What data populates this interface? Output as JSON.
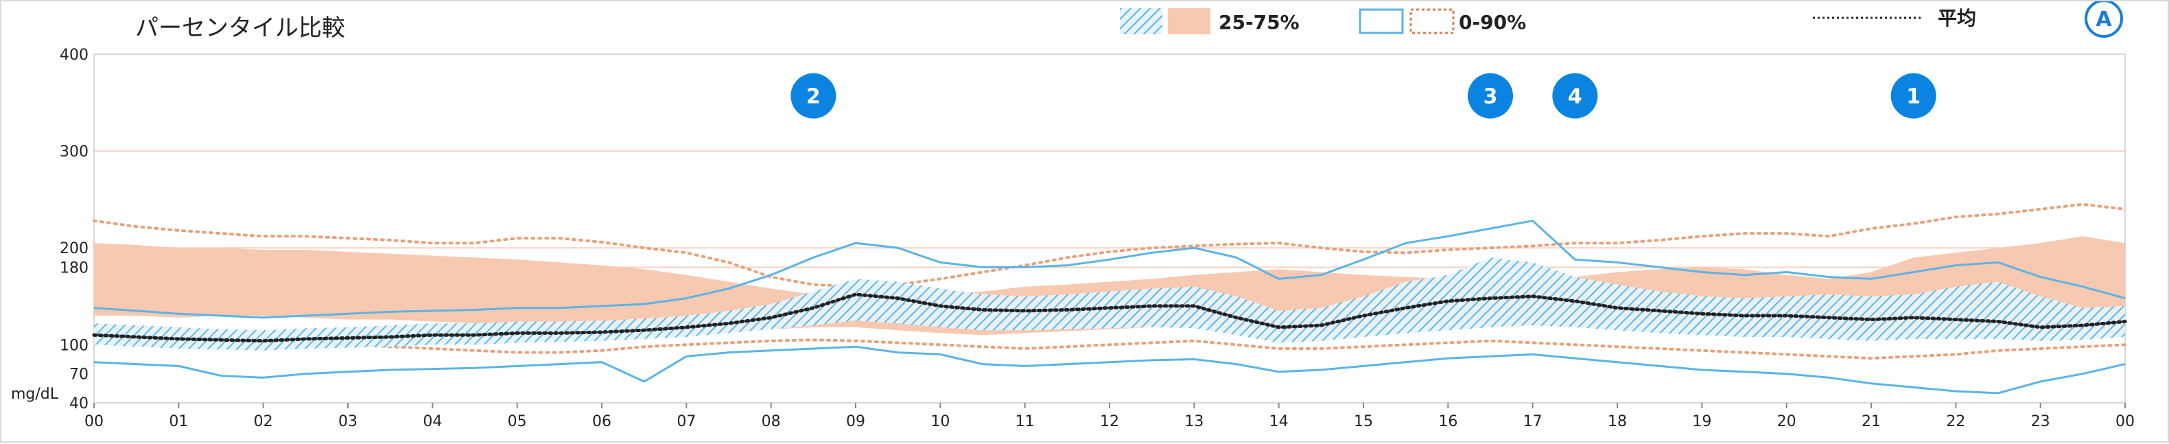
{
  "chart_data": {
    "type": "line",
    "title": "パーセンタイル比較",
    "ylabel": "mg/dL",
    "xlabel": "",
    "y_ticks": [
      40,
      70,
      100,
      180,
      200,
      300,
      400
    ],
    "ylim": [
      40,
      400
    ],
    "x_ticks": [
      "00",
      "01",
      "02",
      "03",
      "04",
      "05",
      "06",
      "07",
      "08",
      "09",
      "10",
      "11",
      "12",
      "13",
      "14",
      "15",
      "16",
      "17",
      "18",
      "19",
      "20",
      "21",
      "22",
      "23",
      "00"
    ],
    "xlim": [
      0,
      24
    ],
    "grid_y_values": [
      180,
      200,
      300
    ],
    "legend": {
      "iqr_label": "25-75%",
      "range_label": "0-90%",
      "mean_label": "平均",
      "placement": "top"
    },
    "colors": {
      "current": "#5bb4e6",
      "comparison": "#f7c9b0",
      "comparison_dots": "#e8a07a",
      "mean": "#222222",
      "marker": "#0a84e0",
      "grid": "#f5d2c2"
    },
    "x": [
      0,
      0.5,
      1,
      1.5,
      2,
      2.5,
      3,
      3.5,
      4,
      4.5,
      5,
      5.5,
      6,
      6.5,
      7,
      7.5,
      8,
      8.5,
      9,
      9.5,
      10,
      10.5,
      11,
      11.5,
      12,
      12.5,
      13,
      13.5,
      14,
      14.5,
      15,
      15.5,
      16,
      16.5,
      17,
      17.5,
      18,
      18.5,
      19,
      19.5,
      20,
      20.5,
      21,
      21.5,
      22,
      22.5,
      23,
      23.5,
      24
    ],
    "series": [
      {
        "name": "平均",
        "values": [
          110,
          108,
          106,
          105,
          104,
          106,
          107,
          108,
          110,
          110,
          112,
          112,
          113,
          115,
          118,
          122,
          128,
          138,
          152,
          148,
          140,
          136,
          135,
          136,
          138,
          140,
          140,
          128,
          118,
          120,
          130,
          138,
          145,
          148,
          150,
          145,
          138,
          135,
          132,
          130,
          130,
          128,
          126,
          128,
          126,
          124,
          118,
          120,
          124
        ]
      },
      {
        "name": "25-75% 下限",
        "values": [
          100,
          98,
          96,
          95,
          94,
          96,
          97,
          98,
          100,
          100,
          102,
          103,
          104,
          106,
          108,
          112,
          116,
          120,
          125,
          122,
          118,
          115,
          115,
          116,
          117,
          118,
          117,
          110,
          102,
          104,
          108,
          112,
          115,
          118,
          120,
          118,
          115,
          112,
          110,
          108,
          108,
          106,
          104,
          106,
          106,
          106,
          104,
          105,
          108
        ]
      },
      {
        "name": "25-75% 上限",
        "values": [
          122,
          120,
          118,
          116,
          115,
          117,
          118,
          120,
          122,
          122,
          124,
          124,
          125,
          127,
          130,
          135,
          142,
          155,
          168,
          165,
          158,
          152,
          150,
          152,
          155,
          158,
          160,
          150,
          135,
          138,
          150,
          165,
          172,
          190,
          185,
          170,
          162,
          155,
          150,
          148,
          150,
          152,
          150,
          152,
          160,
          165,
          150,
          138,
          140
        ]
      },
      {
        "name": "0-90% 上限",
        "values": [
          138,
          135,
          132,
          130,
          128,
          130,
          132,
          134,
          135,
          136,
          138,
          138,
          140,
          142,
          148,
          158,
          172,
          190,
          205,
          200,
          185,
          180,
          180,
          182,
          188,
          195,
          200,
          190,
          168,
          172,
          188,
          205,
          212,
          220,
          228,
          188,
          185,
          180,
          175,
          172,
          175,
          170,
          168,
          175,
          182,
          185,
          170,
          160,
          148
        ]
      },
      {
        "name": "0-90% 下限",
        "values": [
          82,
          80,
          78,
          68,
          66,
          70,
          72,
          74,
          75,
          76,
          78,
          80,
          82,
          62,
          88,
          92,
          94,
          96,
          98,
          92,
          90,
          80,
          78,
          80,
          82,
          84,
          85,
          80,
          72,
          74,
          78,
          82,
          86,
          88,
          90,
          86,
          82,
          78,
          74,
          72,
          70,
          66,
          60,
          56,
          52,
          50,
          62,
          70,
          80
        ]
      },
      {
        "name": "比較 25-75% 下限",
        "values": [
          130,
          130,
          128,
          130,
          130,
          128,
          126,
          126,
          124,
          122,
          120,
          118,
          116,
          114,
          112,
          114,
          116,
          118,
          118,
          115,
          112,
          110,
          112,
          114,
          116,
          118,
          120,
          118,
          116,
          114,
          118,
          120,
          122,
          124,
          120,
          120,
          122,
          120,
          118,
          115,
          112,
          110,
          108,
          110,
          112,
          112,
          112,
          115,
          118
        ]
      },
      {
        "name": "比較 25-75% 上限",
        "values": [
          205,
          203,
          200,
          200,
          198,
          198,
          196,
          194,
          192,
          190,
          188,
          185,
          182,
          178,
          172,
          165,
          158,
          152,
          150,
          150,
          152,
          155,
          160,
          162,
          165,
          168,
          172,
          175,
          178,
          175,
          172,
          170,
          168,
          165,
          165,
          170,
          175,
          178,
          180,
          178,
          172,
          168,
          175,
          190,
          195,
          200,
          205,
          212,
          205
        ]
      },
      {
        "name": "比較 0-90% 上限",
        "values": [
          228,
          222,
          218,
          215,
          212,
          212,
          210,
          208,
          205,
          205,
          210,
          210,
          206,
          200,
          195,
          185,
          170,
          162,
          160,
          162,
          168,
          175,
          182,
          190,
          196,
          200,
          202,
          204,
          205,
          200,
          196,
          195,
          198,
          200,
          202,
          205,
          205,
          208,
          212,
          215,
          215,
          212,
          220,
          225,
          232,
          235,
          240,
          245,
          240
        ]
      },
      {
        "name": "比較 0-90% 下限",
        "values": [
          110,
          108,
          106,
          104,
          104,
          102,
          100,
          98,
          96,
          94,
          92,
          92,
          94,
          98,
          100,
          102,
          104,
          105,
          104,
          102,
          100,
          98,
          96,
          98,
          100,
          102,
          104,
          100,
          96,
          96,
          98,
          100,
          102,
          104,
          102,
          100,
          98,
          96,
          94,
          92,
          90,
          88,
          86,
          88,
          90,
          94,
          96,
          98,
          100
        ]
      }
    ],
    "markers": [
      {
        "label": "2",
        "x": 8.5,
        "y": 357
      },
      {
        "label": "3",
        "x": 16.5,
        "y": 357
      },
      {
        "label": "4",
        "x": 17.5,
        "y": 357
      },
      {
        "label": "1",
        "x": 21.5,
        "y": 357
      }
    ],
    "corner_badge": "A"
  }
}
